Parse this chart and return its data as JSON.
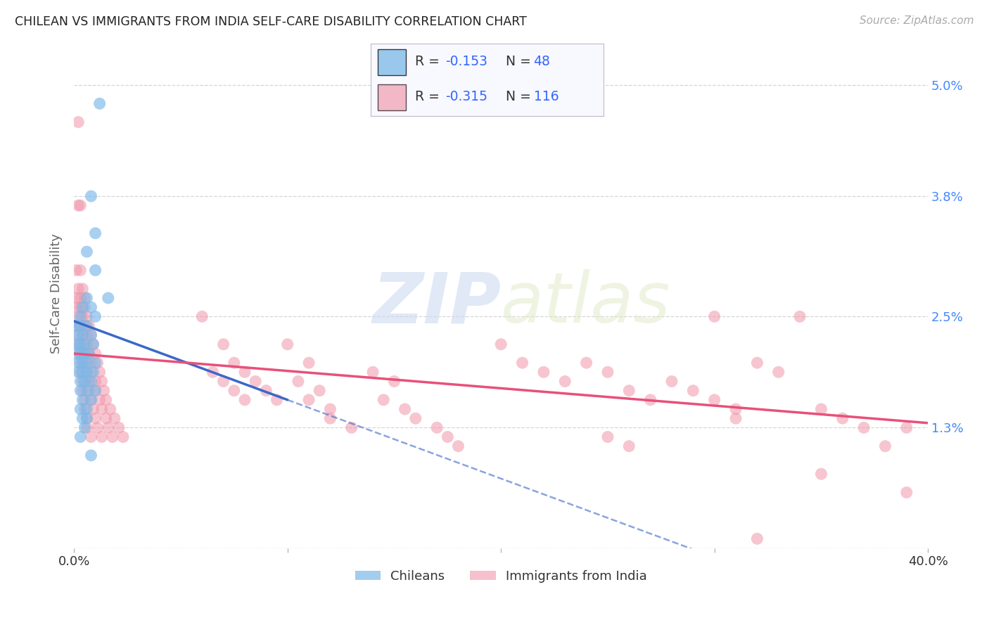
{
  "title": "CHILEAN VS IMMIGRANTS FROM INDIA SELF-CARE DISABILITY CORRELATION CHART",
  "source": "Source: ZipAtlas.com",
  "ylabel": "Self-Care Disability",
  "watermark": "ZIPatlas",
  "xlim": [
    0.0,
    0.4
  ],
  "ylim": [
    0.0,
    0.055
  ],
  "ytick_vals": [
    0.0,
    0.013,
    0.025,
    0.038,
    0.05
  ],
  "ytick_labels": [
    "",
    "1.3%",
    "2.5%",
    "3.8%",
    "5.0%"
  ],
  "xtick_vals": [
    0.0,
    0.1,
    0.2,
    0.3,
    0.4
  ],
  "xtick_labels": [
    "0.0%",
    "",
    "",
    "",
    "40.0%"
  ],
  "chilean_color": "#7bb8e8",
  "india_color": "#f096aa",
  "chilean_line_color": "#3a68c8",
  "india_line_color": "#e8507a",
  "background_color": "#ffffff",
  "grid_color": "#cccccc",
  "title_color": "#222222",
  "axis_label_color": "#666666",
  "tick_color": "#4488ff",
  "legend_box_color": "#e8e8f0",
  "r_label_color": "#333333",
  "r_value_color": "#3366ff",
  "n_label_color": "#333333",
  "n_value_color": "#3366ff"
}
